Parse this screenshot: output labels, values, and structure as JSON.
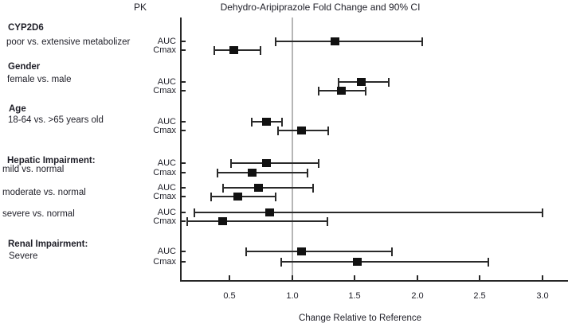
{
  "chart_data": {
    "type": "forest",
    "title": "Dehydro-Aripiprazole Fold Change and 90% CI",
    "column_header": "PK",
    "xlabel": "Change Relative to Reference",
    "ci_level": "90% CI",
    "reference_line": 1.0,
    "x_range": [
      0.11,
      3.2
    ],
    "x_ticks": [
      {
        "value": 0.5,
        "label": "0.5"
      },
      {
        "value": 1.0,
        "label": "1.0"
      },
      {
        "value": 1.5,
        "label": "1.5"
      },
      {
        "value": 2.0,
        "label": "2.0"
      },
      {
        "value": 2.5,
        "label": "2.5"
      },
      {
        "value": 3.0,
        "label": "3.0"
      }
    ],
    "groups": [
      {
        "heading": "CYP2D6",
        "subheading": "poor vs. extensive metabolizer",
        "rows": [
          {
            "pk": "AUC",
            "value": 1.34,
            "low": 0.87,
            "high": 2.04
          },
          {
            "pk": "Cmax",
            "value": 0.53,
            "low": 0.38,
            "high": 0.75
          }
        ]
      },
      {
        "heading": "Gender",
        "subheading": "female vs. male",
        "rows": [
          {
            "pk": "AUC",
            "value": 1.55,
            "low": 1.37,
            "high": 1.77
          },
          {
            "pk": "Cmax",
            "value": 1.39,
            "low": 1.21,
            "high": 1.59
          }
        ]
      },
      {
        "heading": "Age",
        "subheading": "18-64 vs. >65 years old",
        "rows": [
          {
            "pk": "AUC",
            "value": 0.79,
            "low": 0.68,
            "high": 0.92
          },
          {
            "pk": "Cmax",
            "value": 1.07,
            "low": 0.89,
            "high": 1.29
          }
        ]
      },
      {
        "heading": "Hepatic Impairment:",
        "subheading": "mild vs. normal",
        "rows": [
          {
            "pk": "AUC",
            "value": 0.79,
            "low": 0.51,
            "high": 1.21
          },
          {
            "pk": "Cmax",
            "value": 0.68,
            "low": 0.4,
            "high": 1.12
          }
        ]
      },
      {
        "heading": "",
        "subheading": "moderate vs. normal",
        "rows": [
          {
            "pk": "AUC",
            "value": 0.73,
            "low": 0.45,
            "high": 1.17
          },
          {
            "pk": "Cmax",
            "value": 0.56,
            "low": 0.35,
            "high": 0.87
          }
        ]
      },
      {
        "heading": "",
        "subheading": "severe vs. normal",
        "rows": [
          {
            "pk": "AUC",
            "value": 0.82,
            "low": 0.22,
            "high": 3.0
          },
          {
            "pk": "Cmax",
            "value": 0.44,
            "low": 0.16,
            "high": 1.28
          }
        ]
      },
      {
        "heading": "Renal Impairment:",
        "subheading": "Severe",
        "rows": [
          {
            "pk": "AUC",
            "value": 1.07,
            "low": 0.63,
            "high": 1.8
          },
          {
            "pk": "Cmax",
            "value": 1.52,
            "low": 0.91,
            "high": 2.57
          }
        ]
      }
    ]
  }
}
